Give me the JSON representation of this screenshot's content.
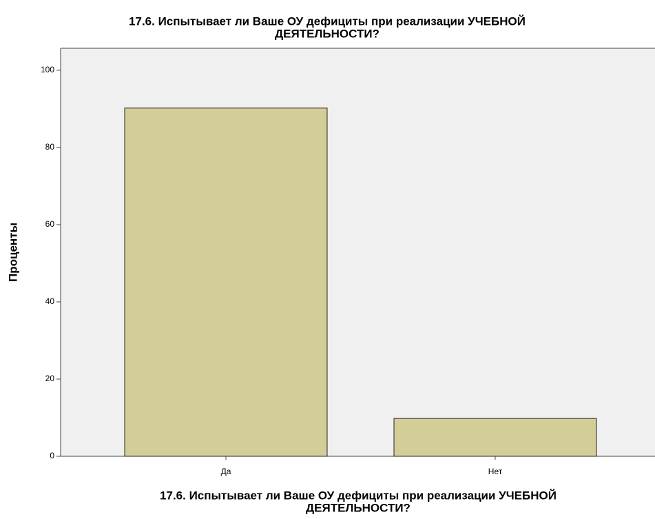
{
  "chart_data": {
    "type": "bar",
    "title": [
      "17.6. Испытывает ли Ваше ОУ дефициты при реализации  УЧЕБНОЙ",
      "ДЕЯТЕЛЬНОСТИ?"
    ],
    "x_label": [
      "17.6. Испытывает ли Ваше ОУ дефициты при реализации  УЧЕБНОЙ",
      "ДЕЯТЕЛЬНОСТИ?"
    ],
    "y_label": "Проценты",
    "categories": [
      "Да",
      "Нет"
    ],
    "values": [
      90.2,
      9.8
    ],
    "color": "#d3ce97",
    "ylim": [
      0,
      105.7
    ],
    "yticks": [
      0,
      20,
      40,
      60,
      80,
      100
    ],
    "grid": false
  }
}
